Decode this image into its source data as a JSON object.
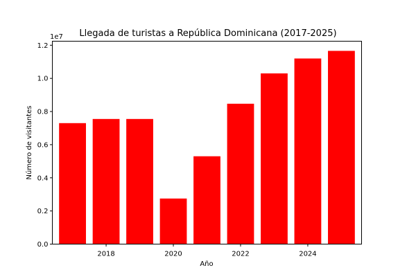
{
  "chart_data": {
    "type": "bar",
    "title": "Llegada de turistas a República Dominicana (2017-2025)",
    "xlabel": "Año",
    "ylabel": "Número de visitantes",
    "offset_label": "1e7",
    "x": [
      2017,
      2018,
      2019,
      2020,
      2021,
      2022,
      2023,
      2024,
      2025
    ],
    "values": [
      7300000,
      7550000,
      7550000,
      2750000,
      5300000,
      8470000,
      10300000,
      11200000,
      11660000
    ],
    "xticks": [
      2018,
      2020,
      2022,
      2024
    ],
    "xtick_labels": [
      "2018",
      "2020",
      "2022",
      "2024"
    ],
    "yticks": [
      0,
      2000000,
      4000000,
      6000000,
      8000000,
      10000000,
      12000000
    ],
    "ytick_labels": [
      "0.0",
      "0.2",
      "0.4",
      "0.6",
      "0.8",
      "1.0",
      "1.2"
    ],
    "xlim": [
      2016.4,
      2025.6
    ],
    "ylim": [
      0,
      12243000
    ],
    "bar_color": "#ff0000",
    "grid": false,
    "legend": "none"
  }
}
